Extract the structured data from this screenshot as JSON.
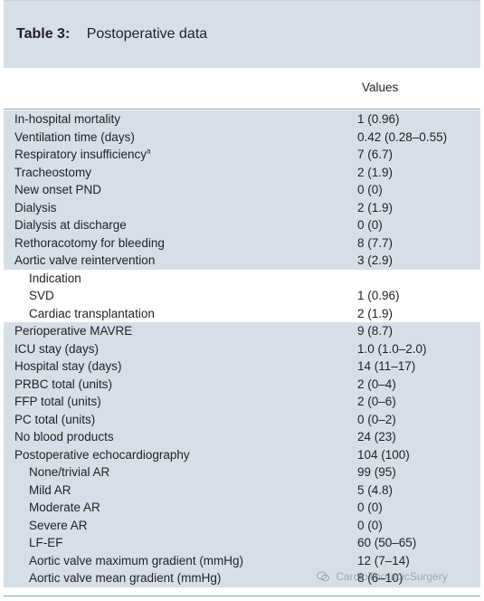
{
  "table": {
    "label": "Table 3:",
    "title": "Postoperative data",
    "column_header": "Values",
    "rows": [
      {
        "label": "In-hospital mortality",
        "value": "1 (0.96)"
      },
      {
        "label": "Ventilation time (days)",
        "value": "0.42 (0.28–0.55)"
      },
      {
        "label": "Respiratory insufficiency",
        "sup": "a",
        "value": "7 (6.7)"
      },
      {
        "label": "Tracheostomy",
        "value": "2 (1.9)"
      },
      {
        "label": "New onset PND",
        "value": "0 (0)"
      },
      {
        "label": "Dialysis",
        "value": "2 (1.9)"
      },
      {
        "label": "Dialysis at discharge",
        "value": "0 (0)"
      },
      {
        "label": "Rethoracotomy for bleeding",
        "value": "8 (7.7)"
      },
      {
        "label": "Aortic valve reintervention",
        "value": "3 (2.9)"
      },
      {
        "label": "Indication",
        "value": ""
      },
      {
        "label": "SVD",
        "value": "1 (0.96)"
      },
      {
        "label": "Cardiac transplantation",
        "value": "2 (1.9)"
      },
      {
        "label": "Perioperative MAVRE",
        "value": "9 (8.7)"
      },
      {
        "label": "ICU stay (days)",
        "value": "1.0 (1.0–2.0)"
      },
      {
        "label": "Hospital stay (days)",
        "value": "14 (11–17)"
      },
      {
        "label": "PRBC total (units)",
        "value": "2 (0–4)"
      },
      {
        "label": "FFP total (units)",
        "value": "2 (0–6)"
      },
      {
        "label": "PC total (units)",
        "value": "0 (0–2)"
      },
      {
        "label": "No blood products",
        "value": "24 (23)"
      },
      {
        "label": "Postoperative echocardiography",
        "value": "104 (100)"
      },
      {
        "label": "None/trivial AR",
        "value": "99 (95)"
      },
      {
        "label": "Mild AR",
        "value": "5 (4.8)"
      },
      {
        "label": "Moderate AR",
        "value": "0 (0)"
      },
      {
        "label": "Severe AR",
        "value": "0 (0)"
      },
      {
        "label": "LF-EF",
        "value": "60 (50–65)"
      },
      {
        "label": "Aortic valve maximum gradient (mmHg)",
        "value": "12 (7–14)"
      },
      {
        "label": "Aortic valve mean gradient (mmHg)",
        "value": "8 (6–10)"
      }
    ]
  },
  "watermark": {
    "text": "CardioThoracicSurgery",
    "icon": "wechat-icon"
  },
  "colors": {
    "shade": "#d6dfe8",
    "rule": "#8ea3b8",
    "text": "#231f20"
  }
}
